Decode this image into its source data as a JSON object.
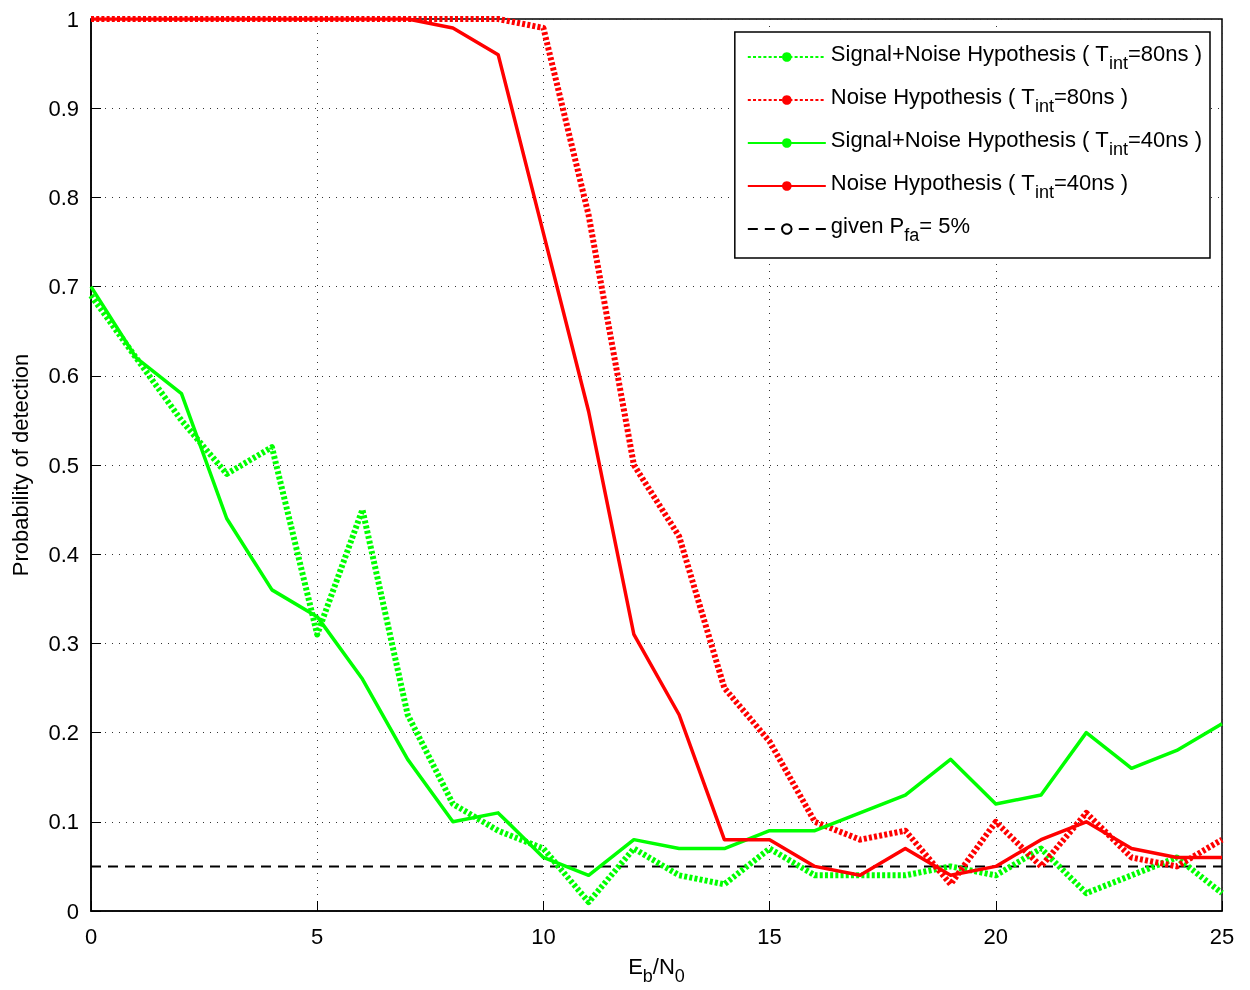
{
  "chart_data": {
    "type": "line",
    "xlabel": "E$_{b}$/N$_{0}$",
    "ylabel": "Probability of detection",
    "x": [
      0,
      1,
      2,
      3,
      4,
      5,
      6,
      7,
      8,
      9,
      10,
      11,
      12,
      13,
      14,
      15,
      16,
      17,
      18,
      19,
      20,
      21,
      22,
      23,
      24,
      25
    ],
    "series": [
      {
        "name": "Signal+Noise Hypothesis ( T$_{int}$=80ns )",
        "color": "#00ff00",
        "line_style": "dashed",
        "values": [
          0.69,
          0.62,
          0.55,
          0.49,
          0.52,
          0.31,
          0.45,
          0.22,
          0.12,
          0.09,
          0.07,
          0.01,
          0.07,
          0.04,
          0.03,
          0.07,
          0.04,
          0.04,
          0.04,
          0.05,
          0.04,
          0.07,
          0.02,
          0.04,
          0.06,
          0.02
        ]
      },
      {
        "name": "Noise Hypothesis ( T$_{int}$=80ns )",
        "color": "#ff0000",
        "line_style": "dashed",
        "values": [
          1,
          1,
          1,
          1,
          1,
          1,
          1,
          1,
          1,
          1,
          0.99,
          0.78,
          0.5,
          0.42,
          0.25,
          0.19,
          0.1,
          0.08,
          0.09,
          0.03,
          0.1,
          0.05,
          0.11,
          0.06,
          0.05,
          0.08
        ]
      },
      {
        "name": "Signal+Noise Hypothesis ( T$_{int}$=40ns )",
        "color": "#00ff00",
        "line_style": "solid",
        "values": [
          0.7,
          0.62,
          0.58,
          0.44,
          0.36,
          0.33,
          0.26,
          0.17,
          0.1,
          0.11,
          0.06,
          0.04,
          0.08,
          0.07,
          0.07,
          0.09,
          0.09,
          0.11,
          0.13,
          0.17,
          0.12,
          0.13,
          0.2,
          0.16,
          0.18,
          0.21
        ]
      },
      {
        "name": "Noise Hypothesis ( T$_{int}$=40ns )",
        "color": "#ff0000",
        "line_style": "solid",
        "values": [
          1,
          1,
          1,
          1,
          1,
          1,
          1,
          1,
          0.99,
          0.96,
          0.76,
          0.56,
          0.31,
          0.22,
          0.08,
          0.08,
          0.05,
          0.04,
          0.07,
          0.04,
          0.05,
          0.08,
          0.1,
          0.07,
          0.06,
          0.06
        ]
      }
    ],
    "ref_lines": [
      {
        "axis": "y",
        "value": 0.05,
        "label": "given P$_{fa}$= 5%",
        "color": "#000000",
        "line_style": "dashed"
      }
    ],
    "xlim": [
      0,
      25
    ],
    "xticks": [
      0,
      5,
      10,
      15,
      20,
      25
    ],
    "ylim": [
      0,
      1
    ],
    "yticks": [
      0,
      0.1,
      0.2,
      0.3,
      0.4,
      0.5,
      0.6,
      0.7,
      0.8,
      0.9,
      1
    ],
    "grid": true,
    "legend": "top right",
    "marker": "none"
  }
}
